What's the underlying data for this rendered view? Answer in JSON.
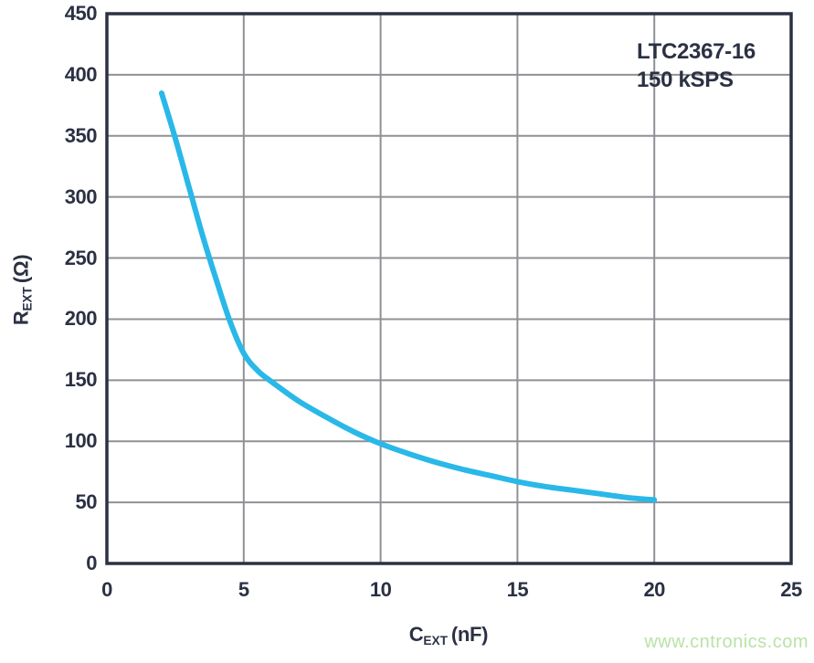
{
  "watermark": "www.cntronics.com",
  "chart_data": {
    "type": "line",
    "title": "",
    "annotation": {
      "line1": "LTC2367-16",
      "line2": "150 kSPS"
    },
    "xlabel": {
      "symbol": "C",
      "subscript": "EXT",
      "unit": "(nF)"
    },
    "ylabel": {
      "symbol": "R",
      "subscript": "EXT",
      "unit": "(Ω)"
    },
    "xlim": [
      0,
      25
    ],
    "ylim": [
      0,
      450
    ],
    "x_ticks": [
      0,
      5,
      10,
      15,
      20,
      25
    ],
    "y_ticks": [
      0,
      50,
      100,
      150,
      200,
      250,
      300,
      350,
      400,
      450
    ],
    "grid": true,
    "legend": "none",
    "series": [
      {
        "name": "LTC2367-16 150 kSPS",
        "x": [
          2,
          2.5,
          3,
          3.5,
          4,
          4.5,
          5,
          5.5,
          6,
          7,
          8,
          9,
          10,
          11,
          12,
          13,
          14,
          15,
          16,
          17,
          18,
          19,
          20
        ],
        "y": [
          385,
          348,
          308,
          268,
          232,
          198,
          172,
          158,
          149,
          133,
          120,
          108,
          98,
          90,
          83,
          77,
          72,
          67,
          63,
          60,
          57,
          54,
          52
        ]
      }
    ],
    "colors": {
      "text": "#2b3143",
      "grid": "#8f9194",
      "curve": "#29b8e8",
      "watermark": "#b9e2a7",
      "background": "#ffffff"
    }
  }
}
